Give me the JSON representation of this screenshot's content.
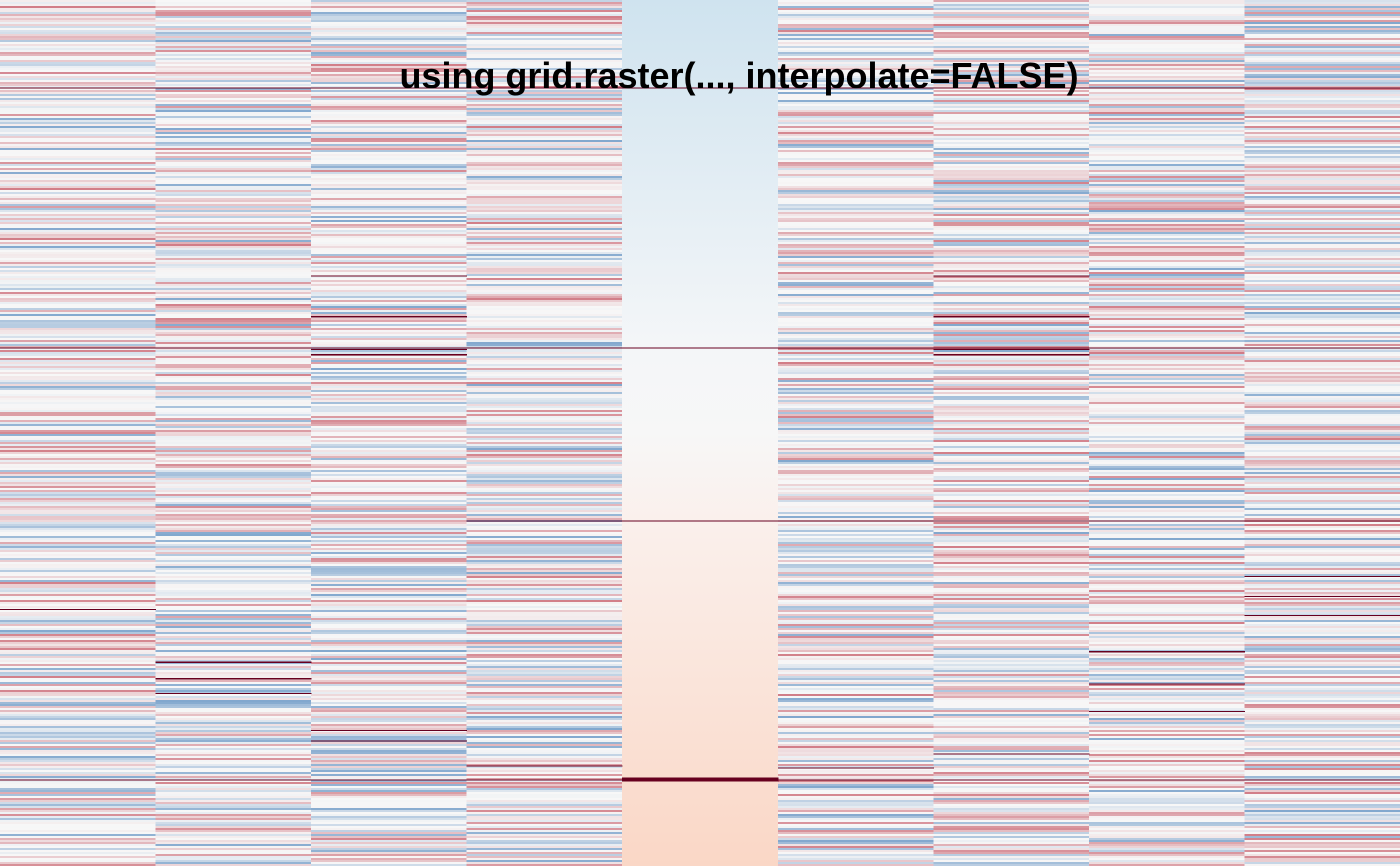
{
  "chart_data": {
    "type": "heatmap",
    "title": "using grid.raster(..., interpolate=FALSE)",
    "columns": 9,
    "rows_per_column": 433,
    "color_scale": {
      "low": "#2166ac",
      "mid": "#f7f7f7",
      "high": "#b2182b",
      "max_cap": "#67001f"
    },
    "column_patterns": [
      "noise",
      "noise",
      "noise",
      "noise",
      "gradient",
      "noise",
      "noise",
      "noise",
      "noise"
    ],
    "gradient_column": {
      "index": 4,
      "start_color": "#cfe3ef",
      "end_color": "#fad7c6",
      "direction": "top-to-bottom"
    },
    "extreme_lines": [
      {
        "columns": [
          0,
          1,
          2,
          3,
          4,
          5,
          6,
          7,
          8
        ],
        "row_fraction": 0.101
      },
      {
        "columns": [
          0,
          1,
          2,
          3,
          4,
          5,
          6,
          7,
          8
        ],
        "row_fraction": 0.401
      },
      {
        "columns": [
          2,
          6
        ],
        "row_fraction": 0.318
      },
      {
        "columns": [
          2,
          6
        ],
        "row_fraction": 0.365
      },
      {
        "columns": [
          2,
          6
        ],
        "row_fraction": 0.403
      },
      {
        "columns": [
          2,
          6
        ],
        "row_fraction": 0.409
      },
      {
        "columns": [
          3,
          4,
          5,
          6,
          7,
          8
        ],
        "row_fraction": 0.601
      },
      {
        "columns": [
          0
        ],
        "row_fraction": 0.703
      },
      {
        "columns": [
          1
        ],
        "row_fraction": 0.764
      },
      {
        "columns": [
          1
        ],
        "row_fraction": 0.783
      },
      {
        "columns": [
          1
        ],
        "row_fraction": 0.8
      },
      {
        "columns": [
          2
        ],
        "row_fraction": 0.843
      },
      {
        "columns": [
          2
        ],
        "row_fraction": 0.855
      },
      {
        "columns": [
          3
        ],
        "row_fraction": 0.884
      },
      {
        "columns": [
          4
        ],
        "row_fraction": 0.898
      },
      {
        "columns": [
          4
        ],
        "row_fraction": 0.9
      },
      {
        "columns": [
          5
        ],
        "row_fraction": 0.886
      },
      {
        "columns": [
          6
        ],
        "row_fraction": 0.87
      },
      {
        "columns": [
          7
        ],
        "row_fraction": 0.752
      },
      {
        "columns": [
          7
        ],
        "row_fraction": 0.789
      },
      {
        "columns": [
          7
        ],
        "row_fraction": 0.821
      },
      {
        "columns": [
          8
        ],
        "row_fraction": 0.665
      },
      {
        "columns": [
          8
        ],
        "row_fraction": 0.688
      },
      {
        "columns": [
          8
        ],
        "row_fraction": 0.71
      },
      {
        "columns": [
          0,
          1,
          2,
          3,
          5,
          6,
          7,
          8
        ],
        "row_fraction": 0.9
      }
    ]
  }
}
